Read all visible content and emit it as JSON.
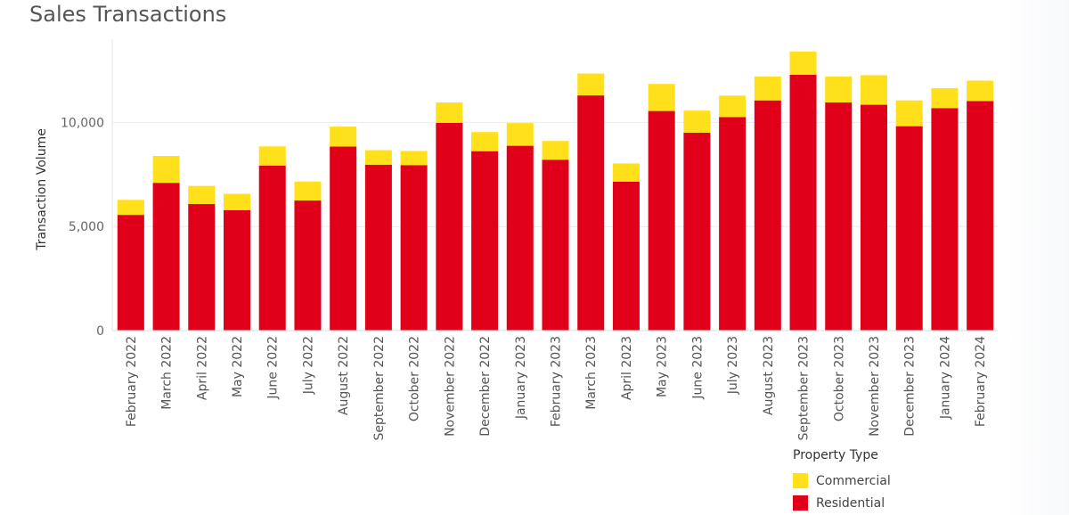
{
  "title": "Sales Transactions",
  "chart_data": {
    "type": "bar",
    "stacked": true,
    "title": "Sales Transactions",
    "xlabel": "",
    "ylabel": "Transaction Volume",
    "ylim": [
      0,
      14000
    ],
    "yticks": [
      0,
      5000,
      10000
    ],
    "ytick_labels": [
      "0",
      "5,000",
      "10,000"
    ],
    "grid": true,
    "legend_position": "bottom-right",
    "legend_title": "Property Type",
    "categories": [
      "February 2022",
      "March 2022",
      "April 2022",
      "May 2022",
      "June 2022",
      "July 2022",
      "August 2022",
      "September 2022",
      "October 2022",
      "November 2022",
      "December 2022",
      "January 2023",
      "February 2023",
      "March 2023",
      "April 2023",
      "May 2023",
      "June 2023",
      "July 2023",
      "August 2023",
      "September 2023",
      "October 2023",
      "November 2023",
      "December 2023",
      "January 2024",
      "February 2024"
    ],
    "series": [
      {
        "name": "Residential",
        "color": "#e00019",
        "values": [
          5560,
          7100,
          6080,
          5780,
          7930,
          6250,
          8840,
          7970,
          7950,
          9980,
          8620,
          8880,
          8210,
          11300,
          7150,
          10550,
          9510,
          10260,
          11060,
          12290,
          10960,
          10850,
          9820,
          10690,
          11030
        ]
      },
      {
        "name": "Commercial",
        "color": "#ffe01b",
        "values": [
          720,
          1290,
          870,
          790,
          920,
          910,
          960,
          700,
          680,
          980,
          920,
          1090,
          900,
          1050,
          880,
          1300,
          1060,
          1030,
          1150,
          1120,
          1250,
          1420,
          1240,
          960,
          980
        ]
      }
    ]
  }
}
